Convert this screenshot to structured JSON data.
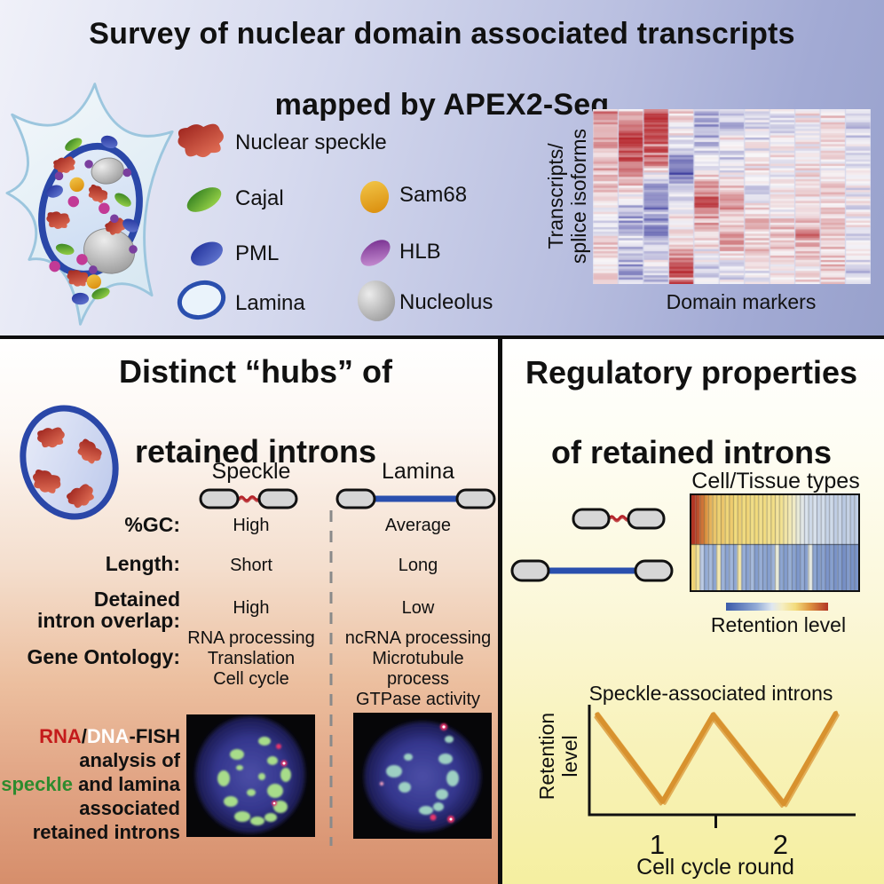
{
  "top_panel": {
    "title_line1": "Survey of nuclear domain associated transcripts",
    "title_line2": "mapped by APEX2-Seq",
    "legend": {
      "nuclear_speckle": "Nuclear speckle",
      "cajal": "Cajal",
      "pml": "PML",
      "lamina": "Lamina",
      "sam68": "Sam68",
      "hlb": "HLB",
      "nucleolus": "Nucleolus"
    },
    "heatmap_ylabel": "Transcripts/\nsplice isoforms",
    "heatmap_xlabel": "Domain markers"
  },
  "hubs_panel": {
    "title_line1": "Distinct “hubs” of",
    "title_line2": "retained introns",
    "col1_header": "Speckle",
    "col2_header": "Lamina",
    "rows": {
      "gc": {
        "label": "%GC:",
        "speckle": "High",
        "lamina": "Average"
      },
      "length": {
        "label": "Length:",
        "speckle": "Short",
        "lamina": "Long"
      },
      "detained": {
        "label": "Detained\nintron overlap:",
        "speckle": "High",
        "lamina": "Low"
      },
      "go": {
        "label": "Gene Ontology:",
        "speckle": "RNA processing\nTranslation\nCell cycle",
        "lamina": "ncRNA processing\nMicrotubule process\nGTPase activity"
      }
    },
    "fish_caption_lines": [
      [
        {
          "t": "RNA",
          "c": "#c41b1b"
        },
        {
          "t": "/",
          "c": "#111111"
        },
        {
          "t": "DNA",
          "c": "#ffffff"
        },
        {
          "t": "-FISH",
          "c": "#111111"
        }
      ],
      [
        {
          "t": "analysis of",
          "c": "#111111"
        }
      ],
      [
        {
          "t": "speckle",
          "c": "#2e8b2e"
        },
        {
          "t": " and lamina",
          "c": "#111111"
        }
      ],
      [
        {
          "t": "associated",
          "c": "#111111"
        }
      ],
      [
        {
          "t": "retained introns",
          "c": "#111111"
        }
      ]
    ]
  },
  "regulatory_panel": {
    "title_line1": "Regulatory properties",
    "title_line2": "of retained introns",
    "tissue_title": "Cell/Tissue types",
    "colorbar_label": "Retention level",
    "chart": {
      "title": "Speckle-associated introns",
      "ylabel": "Retention\nlevel",
      "xlabel": "Cell cycle round",
      "tick1": "1",
      "tick2": "2"
    }
  },
  "chart_data": [
    {
      "id": "domain_heatmap",
      "type": "heatmap",
      "xlabel": "Domain markers",
      "ylabel": "Transcripts/splice isoforms",
      "columns": 11,
      "rows": 80,
      "palette": {
        "neg": "#35369b",
        "mid": "#f8f6f8",
        "pos": "#b6262c"
      },
      "seed": 7,
      "column_profiles": [
        [
          0.55,
          0.4,
          0.5,
          0.3,
          0.35,
          0.15,
          0.0,
          -0.15,
          0.05,
          0.3,
          0.1,
          0.15
        ],
        [
          0.2,
          0.65,
          0.85,
          0.75,
          0.45,
          0.15,
          -0.35,
          -0.45,
          -0.15,
          -0.35,
          -0.45,
          -0.25
        ],
        [
          0.7,
          0.85,
          0.9,
          0.7,
          0.05,
          -0.5,
          -0.65,
          -0.55,
          -0.4,
          -0.1,
          -0.05,
          -0.3
        ],
        [
          0.1,
          0.05,
          0.0,
          -0.6,
          -0.75,
          -0.25,
          0.05,
          0.1,
          0.15,
          0.4,
          0.85,
          0.75
        ],
        [
          -0.3,
          -0.45,
          -0.35,
          -0.15,
          0.1,
          0.55,
          0.75,
          0.55,
          0.1,
          0.0,
          -0.2,
          0.05
        ],
        [
          -0.1,
          -0.3,
          0.15,
          -0.25,
          -0.05,
          0.25,
          0.45,
          0.2,
          0.5,
          0.15,
          -0.2,
          -0.05
        ],
        [
          -0.05,
          -0.15,
          -0.1,
          0.0,
          0.1,
          -0.1,
          0.1,
          0.3,
          0.1,
          0.25,
          -0.1,
          0.0
        ],
        [
          0.0,
          -0.1,
          0.05,
          0.1,
          -0.05,
          0.1,
          0.0,
          0.2,
          0.3,
          0.15,
          0.1,
          -0.1
        ],
        [
          0.05,
          0.0,
          0.1,
          0.05,
          0.1,
          0.15,
          0.2,
          0.4,
          0.6,
          0.25,
          0.15,
          0.1
        ],
        [
          0.15,
          0.1,
          0.15,
          0.05,
          0.1,
          0.2,
          0.1,
          0.2,
          0.35,
          0.2,
          0.25,
          0.3
        ],
        [
          -0.15,
          -0.2,
          -0.1,
          -0.05,
          0.0,
          -0.1,
          -0.05,
          0.0,
          -0.1,
          -0.05,
          -0.25,
          0.1
        ]
      ]
    },
    {
      "id": "tissue_heatmap",
      "type": "heatmap",
      "title": "Cell/Tissue types",
      "colorbar_label": "Retention level",
      "colormap_stops": [
        [
          0,
          "#3b5aa9"
        ],
        [
          0.3,
          "#93abd6"
        ],
        [
          0.45,
          "#dfe7f0"
        ],
        [
          0.55,
          "#f5eec2"
        ],
        [
          0.68,
          "#f3dc7c"
        ],
        [
          0.82,
          "#de9440"
        ],
        [
          1,
          "#b33524"
        ]
      ],
      "row_speckle_intron": [
        1.0,
        0.95,
        0.88,
        0.82,
        0.76,
        0.72,
        0.7,
        0.72,
        0.69,
        0.71,
        0.68,
        0.7,
        0.67,
        0.69,
        0.66,
        0.68,
        0.65,
        0.67,
        0.64,
        0.66,
        0.62,
        0.64,
        0.6,
        0.57,
        0.54,
        0.5,
        0.47,
        0.44,
        0.42,
        0.44,
        0.41,
        0.43,
        0.4,
        0.42,
        0.39,
        0.41,
        0.38,
        0.4,
        0.38,
        0.39
      ],
      "row_lamina_intron": [
        0.7,
        0.62,
        0.38,
        0.3,
        0.34,
        0.28,
        0.58,
        0.32,
        0.27,
        0.33,
        0.29,
        0.6,
        0.31,
        0.27,
        0.34,
        0.25,
        0.31,
        0.28,
        0.26,
        0.32,
        0.5,
        0.28,
        0.25,
        0.31,
        0.27,
        0.23,
        0.3,
        0.26,
        0.48,
        0.28,
        0.24,
        0.27,
        0.22,
        0.26,
        0.21,
        0.25,
        0.2,
        0.24,
        0.21,
        0.22
      ]
    },
    {
      "id": "cell_cycle_chart",
      "type": "line",
      "title": "Speckle-associated introns",
      "xlabel": "Cell cycle round",
      "ylabel": "Retention level",
      "x_ticks": [
        {
          "label": "1",
          "pos": 0.255
        },
        {
          "label": "2",
          "pos": 0.718
        }
      ],
      "boundary_tick_pos": 0.475,
      "line_color": "#d8922f",
      "points": [
        [
          0.03,
          0.09
        ],
        [
          0.275,
          0.88
        ],
        [
          0.465,
          0.09
        ],
        [
          0.73,
          0.9
        ],
        [
          0.925,
          0.08
        ]
      ]
    }
  ]
}
